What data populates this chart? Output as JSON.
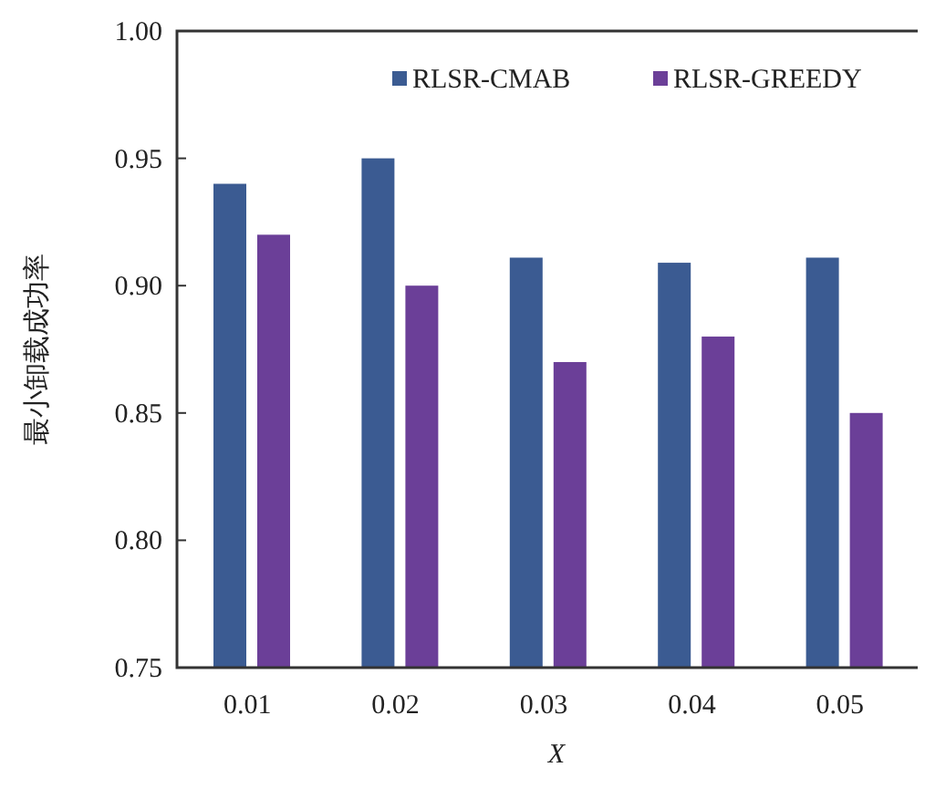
{
  "chart_data": {
    "type": "bar",
    "xlabel": "X",
    "ylabel": "最小卸载成功率",
    "categories": [
      "0.01",
      "0.02",
      "0.03",
      "0.04",
      "0.05"
    ],
    "series": [
      {
        "name": "RLSR-CMAB",
        "color": "#3b5b92",
        "values": [
          0.94,
          0.95,
          0.911,
          0.909,
          0.911
        ]
      },
      {
        "name": "RLSR-GREEDY",
        "color": "#6b3f98",
        "values": [
          0.92,
          0.9,
          0.87,
          0.88,
          0.85
        ]
      }
    ],
    "ylim": [
      0.75,
      1.0
    ],
    "yticks": [
      0.75,
      {
        "value": 0.8,
        "label": "0.80"
      },
      0.85,
      {
        "value": 0.9,
        "label": "0.90"
      },
      0.95,
      {
        "value": 1.0,
        "label": "1.00"
      }
    ],
    "grid": false,
    "legend": "top right"
  }
}
